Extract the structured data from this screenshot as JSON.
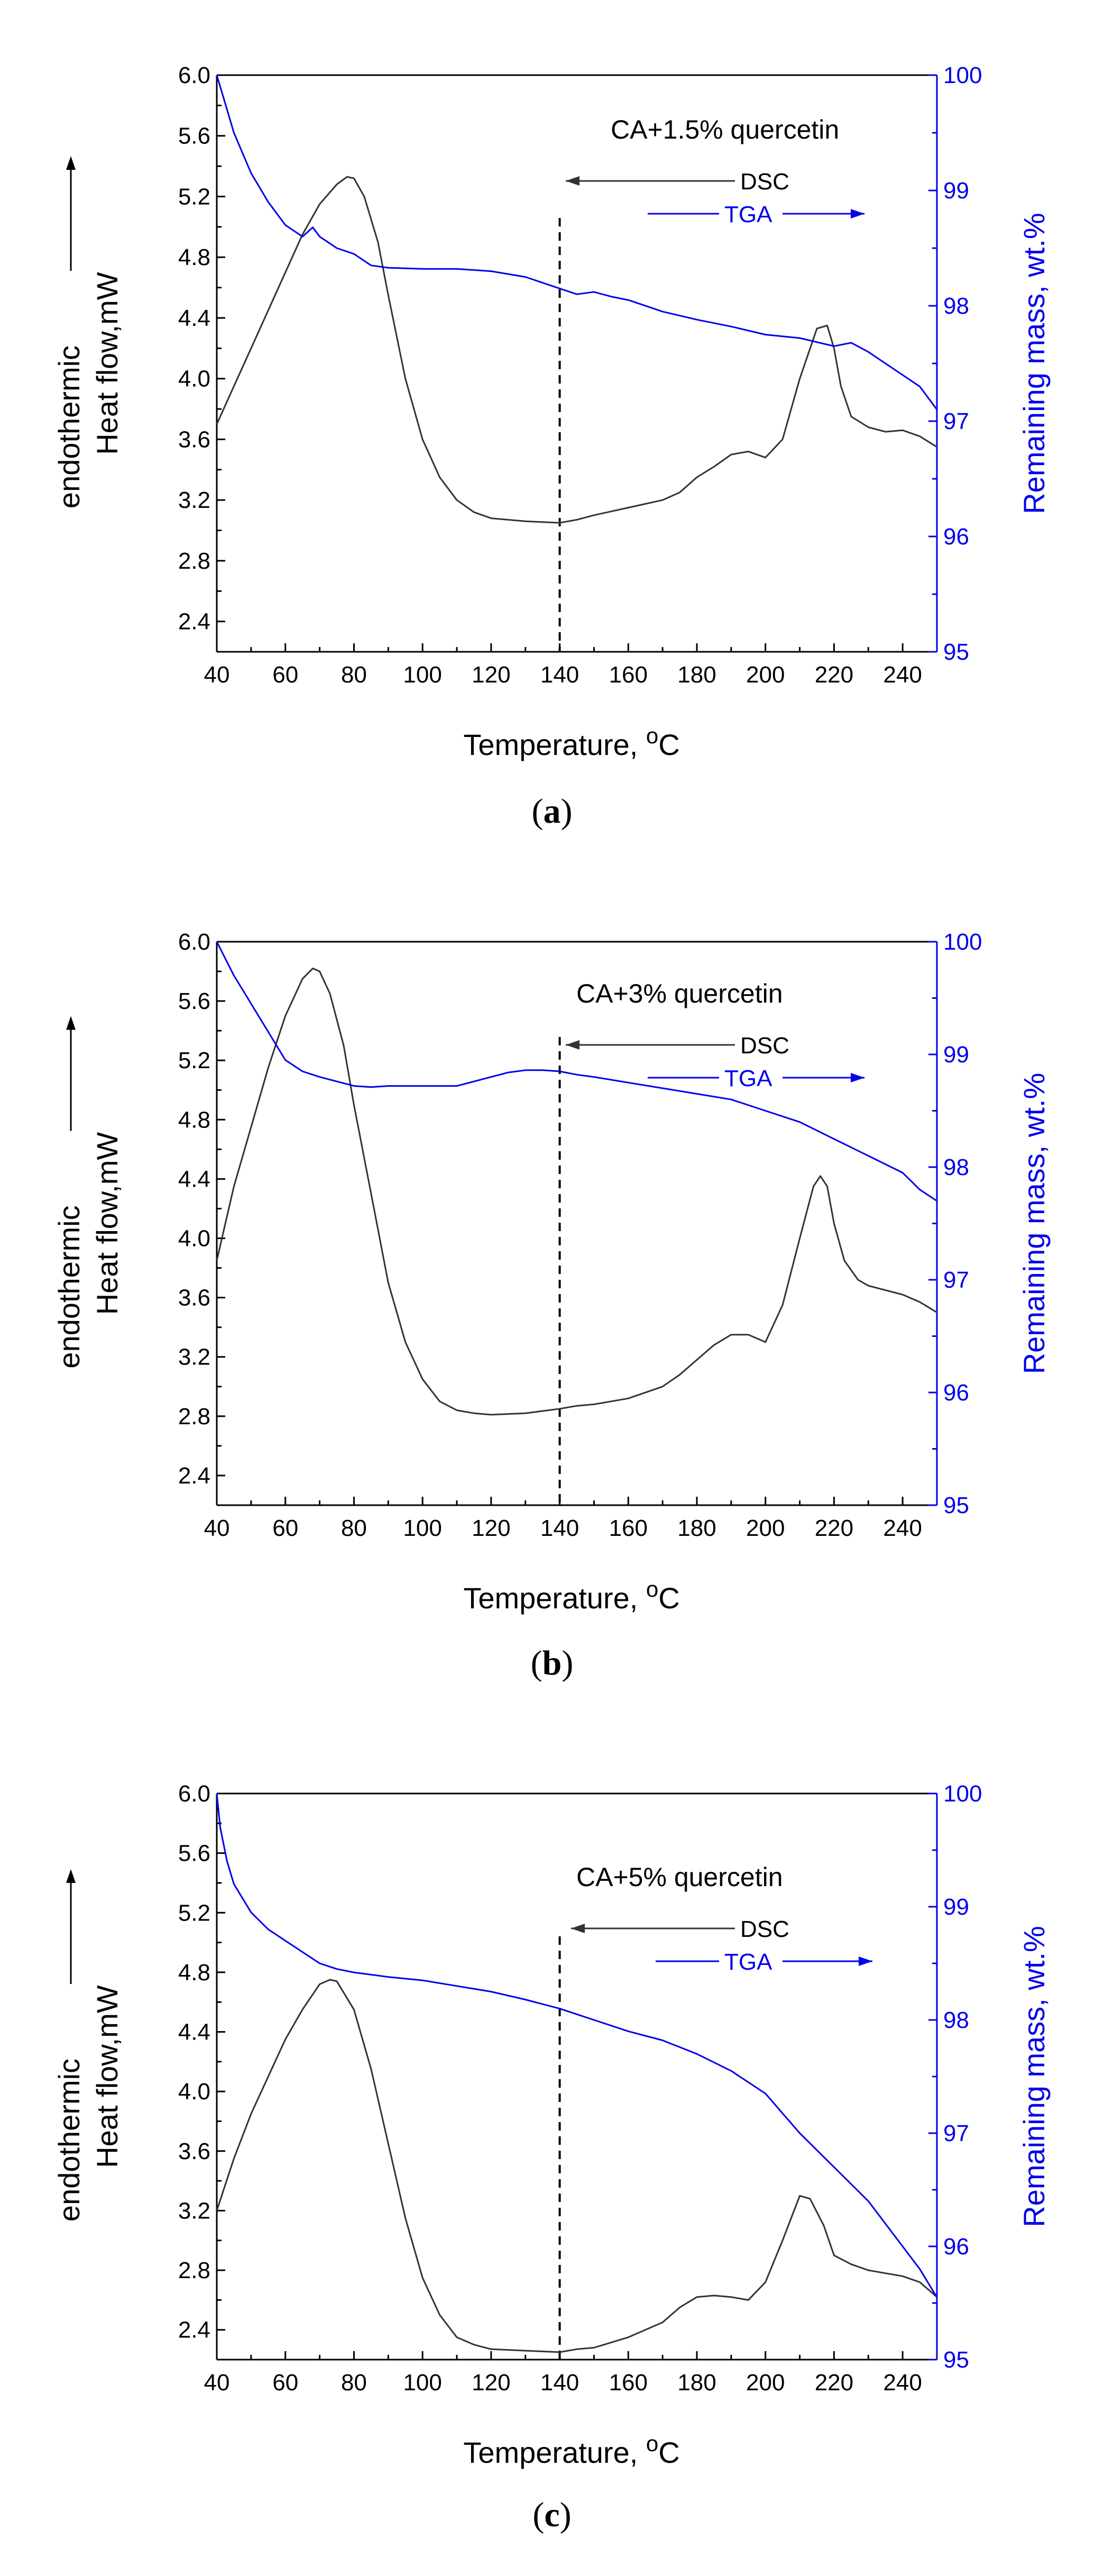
{
  "chart_data": [
    {
      "type": "line",
      "panel_label": "(a)",
      "panel_letter": "a",
      "annotation": "CA+1.5% quercetin",
      "xlabel": "Temperature, ",
      "xlabel_unit": "C",
      "xlabel_sup": "o",
      "ylabel_line1": "endothermic",
      "ylabel_line2": "Heat flow,mW",
      "y2label": "Remaining mass, wt.%",
      "xlim": [
        40,
        250
      ],
      "ylim": [
        2.2,
        6.0
      ],
      "y2lim": [
        95,
        100
      ],
      "xticks": [
        "40",
        "60",
        "80",
        "100",
        "120",
        "140",
        "160",
        "180",
        "200",
        "220",
        "240"
      ],
      "yticks": [
        "2.4",
        "2.8",
        "3.2",
        "3.6",
        "4.0",
        "4.4",
        "4.8",
        "5.2",
        "5.6",
        "6.0"
      ],
      "y2ticks": [
        "95",
        "96",
        "97",
        "98",
        "99",
        "100"
      ],
      "reference_line_x": 140,
      "legend": [
        {
          "label": "DSC",
          "color": "#333333"
        },
        {
          "label": "TGA",
          "color": "#0000ee"
        }
      ],
      "series": [
        {
          "name": "DSC",
          "axis": "left",
          "color": "#333333",
          "x": [
            40,
            45,
            50,
            55,
            60,
            65,
            70,
            75,
            78,
            80,
            83,
            87,
            90,
            95,
            100,
            105,
            110,
            115,
            120,
            130,
            140,
            145,
            150,
            160,
            170,
            175,
            180,
            185,
            190,
            195,
            200,
            205,
            210,
            215,
            218,
            220,
            222,
            225,
            230,
            235,
            240,
            245,
            250
          ],
          "y": [
            3.7,
            3.95,
            4.2,
            4.45,
            4.7,
            4.95,
            5.15,
            5.28,
            5.33,
            5.32,
            5.2,
            4.9,
            4.55,
            4.0,
            3.6,
            3.35,
            3.2,
            3.12,
            3.08,
            3.06,
            3.05,
            3.07,
            3.1,
            3.15,
            3.2,
            3.25,
            3.35,
            3.42,
            3.5,
            3.52,
            3.48,
            3.6,
            4.0,
            4.33,
            4.35,
            4.2,
            3.95,
            3.75,
            3.68,
            3.65,
            3.66,
            3.62,
            3.55
          ]
        },
        {
          "name": "TGA",
          "axis": "right",
          "color": "#0000ee",
          "x": [
            40,
            42,
            45,
            50,
            55,
            60,
            65,
            68,
            70,
            75,
            80,
            85,
            90,
            100,
            110,
            120,
            130,
            140,
            145,
            150,
            155,
            160,
            170,
            180,
            190,
            200,
            210,
            220,
            225,
            230,
            240,
            245,
            250
          ],
          "y": [
            100,
            99.8,
            99.5,
            99.15,
            98.9,
            98.7,
            98.6,
            98.68,
            98.6,
            98.5,
            98.45,
            98.35,
            98.33,
            98.32,
            98.32,
            98.3,
            98.25,
            98.15,
            98.1,
            98.12,
            98.08,
            98.05,
            97.95,
            97.88,
            97.82,
            97.75,
            97.72,
            97.65,
            97.68,
            97.6,
            97.4,
            97.3,
            97.1
          ]
        }
      ]
    },
    {
      "type": "line",
      "panel_label": "(b)",
      "panel_letter": "b",
      "annotation": "CA+3% quercetin",
      "xlabel": "Temperature, ",
      "xlabel_unit": "C",
      "xlabel_sup": "o",
      "ylabel_line1": "endothermic",
      "ylabel_line2": "Heat flow,mW",
      "y2label": "Remaining mass, wt.%",
      "xlim": [
        40,
        250
      ],
      "ylim": [
        2.2,
        6.0
      ],
      "y2lim": [
        95,
        100
      ],
      "xticks": [
        "40",
        "60",
        "80",
        "100",
        "120",
        "140",
        "160",
        "180",
        "200",
        "220",
        "240"
      ],
      "yticks": [
        "2.4",
        "2.8",
        "3.2",
        "3.6",
        "4.0",
        "4.4",
        "4.8",
        "5.2",
        "5.6",
        "6.0"
      ],
      "y2ticks": [
        "95",
        "96",
        "97",
        "98",
        "99",
        "100"
      ],
      "reference_line_x": 140,
      "legend": [
        {
          "label": "DSC",
          "color": "#333333"
        },
        {
          "label": "TGA",
          "color": "#0000ee"
        }
      ],
      "series": [
        {
          "name": "DSC",
          "axis": "left",
          "color": "#333333",
          "x": [
            40,
            45,
            50,
            55,
            60,
            65,
            68,
            70,
            73,
            77,
            80,
            85,
            90,
            95,
            100,
            105,
            110,
            115,
            120,
            130,
            140,
            145,
            150,
            160,
            170,
            175,
            180,
            185,
            190,
            195,
            200,
            205,
            210,
            214,
            216,
            218,
            220,
            223,
            227,
            230,
            240,
            245,
            250
          ],
          "y": [
            3.85,
            4.35,
            4.75,
            5.15,
            5.5,
            5.75,
            5.82,
            5.8,
            5.65,
            5.3,
            4.9,
            4.3,
            3.7,
            3.3,
            3.05,
            2.9,
            2.84,
            2.82,
            2.81,
            2.82,
            2.85,
            2.87,
            2.88,
            2.92,
            3.0,
            3.08,
            3.18,
            3.28,
            3.35,
            3.35,
            3.3,
            3.55,
            4.0,
            4.35,
            4.42,
            4.35,
            4.1,
            3.85,
            3.72,
            3.68,
            3.62,
            3.57,
            3.5
          ]
        },
        {
          "name": "TGA",
          "axis": "right",
          "color": "#0000ee",
          "x": [
            40,
            45,
            50,
            55,
            60,
            65,
            70,
            75,
            80,
            85,
            90,
            100,
            110,
            120,
            125,
            130,
            135,
            140,
            145,
            150,
            160,
            170,
            180,
            190,
            200,
            210,
            220,
            230,
            240,
            245,
            250
          ],
          "y": [
            100,
            99.7,
            99.45,
            99.2,
            98.95,
            98.85,
            98.8,
            98.76,
            98.72,
            98.71,
            98.72,
            98.72,
            98.72,
            98.8,
            98.84,
            98.86,
            98.86,
            98.85,
            98.82,
            98.8,
            98.75,
            98.7,
            98.65,
            98.6,
            98.5,
            98.4,
            98.25,
            98.1,
            97.95,
            97.8,
            97.7
          ]
        }
      ]
    },
    {
      "type": "line",
      "panel_label": "(c)",
      "panel_letter": "c",
      "annotation": "CA+5% quercetin",
      "xlabel": "Temperature, ",
      "xlabel_unit": "C",
      "xlabel_sup": "o",
      "ylabel_line1": "endothermic",
      "ylabel_line2": "Heat flow,mW",
      "y2label": "Remaining mass, wt.%",
      "xlim": [
        40,
        250
      ],
      "ylim": [
        2.2,
        6.0
      ],
      "y2lim": [
        95,
        100
      ],
      "xticks": [
        "40",
        "60",
        "80",
        "100",
        "120",
        "140",
        "160",
        "180",
        "200",
        "220",
        "240"
      ],
      "yticks": [
        "2.4",
        "2.8",
        "3.2",
        "3.6",
        "4.0",
        "4.4",
        "4.8",
        "5.2",
        "5.6",
        "6.0"
      ],
      "y2ticks": [
        "95",
        "96",
        "97",
        "98",
        "99",
        "100"
      ],
      "reference_line_x": 140,
      "legend": [
        {
          "label": "DSC",
          "color": "#333333"
        },
        {
          "label": "TGA",
          "color": "#0000ee"
        }
      ],
      "series": [
        {
          "name": "DSC",
          "axis": "left",
          "color": "#333333",
          "x": [
            40,
            45,
            50,
            55,
            60,
            65,
            70,
            73,
            75,
            80,
            85,
            90,
            95,
            100,
            105,
            110,
            115,
            120,
            130,
            140,
            145,
            150,
            160,
            170,
            175,
            180,
            185,
            190,
            195,
            200,
            205,
            210,
            213,
            217,
            220,
            225,
            230,
            240,
            245,
            250
          ],
          "y": [
            3.2,
            3.55,
            3.85,
            4.1,
            4.35,
            4.55,
            4.72,
            4.75,
            4.74,
            4.55,
            4.15,
            3.65,
            3.15,
            2.75,
            2.5,
            2.35,
            2.3,
            2.27,
            2.26,
            2.25,
            2.27,
            2.28,
            2.35,
            2.45,
            2.55,
            2.62,
            2.63,
            2.62,
            2.6,
            2.72,
            3.0,
            3.3,
            3.28,
            3.1,
            2.9,
            2.84,
            2.8,
            2.76,
            2.72,
            2.62
          ]
        },
        {
          "name": "TGA",
          "axis": "right",
          "color": "#0000ee",
          "x": [
            40,
            41,
            43,
            45,
            50,
            55,
            60,
            65,
            70,
            75,
            80,
            90,
            100,
            110,
            120,
            130,
            140,
            150,
            160,
            170,
            180,
            190,
            200,
            210,
            220,
            230,
            240,
            245,
            250
          ],
          "y": [
            100,
            99.7,
            99.4,
            99.2,
            98.95,
            98.8,
            98.7,
            98.6,
            98.5,
            98.45,
            98.42,
            98.38,
            98.35,
            98.3,
            98.25,
            98.18,
            98.1,
            98.0,
            97.9,
            97.82,
            97.7,
            97.55,
            97.35,
            97.0,
            96.7,
            96.4,
            96.0,
            95.8,
            95.55
          ]
        }
      ]
    }
  ]
}
